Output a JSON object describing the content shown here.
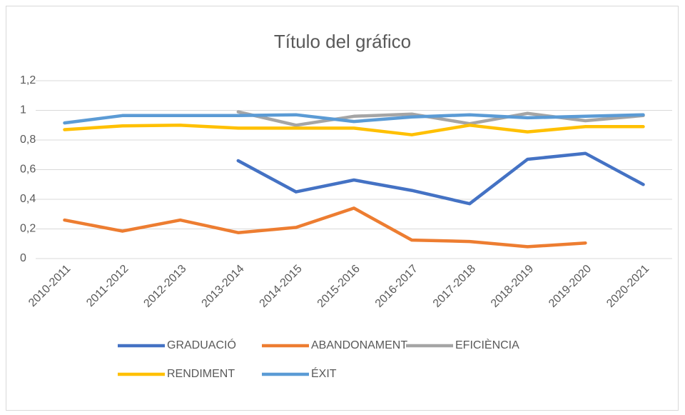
{
  "chart_data": {
    "type": "line",
    "title": "Título del gráfico",
    "categories": [
      "2010-2011",
      "2011-2012",
      "2012-2013",
      "2013-2014",
      "2014-2015",
      "2015-2016",
      "2016-2017",
      "2017-2018",
      "2018-2019",
      "2019-2020",
      "2020-2021"
    ],
    "series": [
      {
        "name": "GRADUACIÓ",
        "color": "#4472c4",
        "values": [
          null,
          null,
          null,
          0.66,
          0.45,
          0.53,
          0.46,
          0.37,
          0.67,
          0.71,
          0.5
        ]
      },
      {
        "name": "ABANDONAMENT",
        "color": "#ed7d31",
        "values": [
          0.26,
          0.185,
          0.26,
          0.175,
          0.21,
          0.34,
          0.125,
          0.115,
          0.08,
          0.105,
          null
        ]
      },
      {
        "name": "EFICIÈNCIA",
        "color": "#a5a5a5",
        "values": [
          null,
          null,
          null,
          0.99,
          0.9,
          0.96,
          0.975,
          0.91,
          0.98,
          0.93,
          0.965
        ]
      },
      {
        "name": "RENDIMENT",
        "color": "#ffc000",
        "values": [
          0.87,
          0.895,
          0.9,
          0.88,
          0.88,
          0.88,
          0.835,
          0.9,
          0.855,
          0.89,
          0.89
        ]
      },
      {
        "name": "ÉXIT",
        "color": "#5b9bd5",
        "values": [
          0.915,
          0.965,
          0.965,
          0.965,
          0.97,
          0.925,
          0.955,
          0.97,
          0.95,
          0.96,
          0.97
        ]
      }
    ],
    "ylim": [
      0,
      1.2
    ],
    "yticks": [
      0,
      {
        "value": 0.2,
        "label": "0,2"
      },
      {
        "value": 0.4,
        "label": "0,4"
      },
      {
        "value": 0.6,
        "label": "0,6"
      },
      {
        "value": 0.8,
        "label": "0,8"
      },
      1,
      {
        "value": 1.2,
        "label": "1,2"
      }
    ],
    "grid": true,
    "legend": "bottom"
  }
}
